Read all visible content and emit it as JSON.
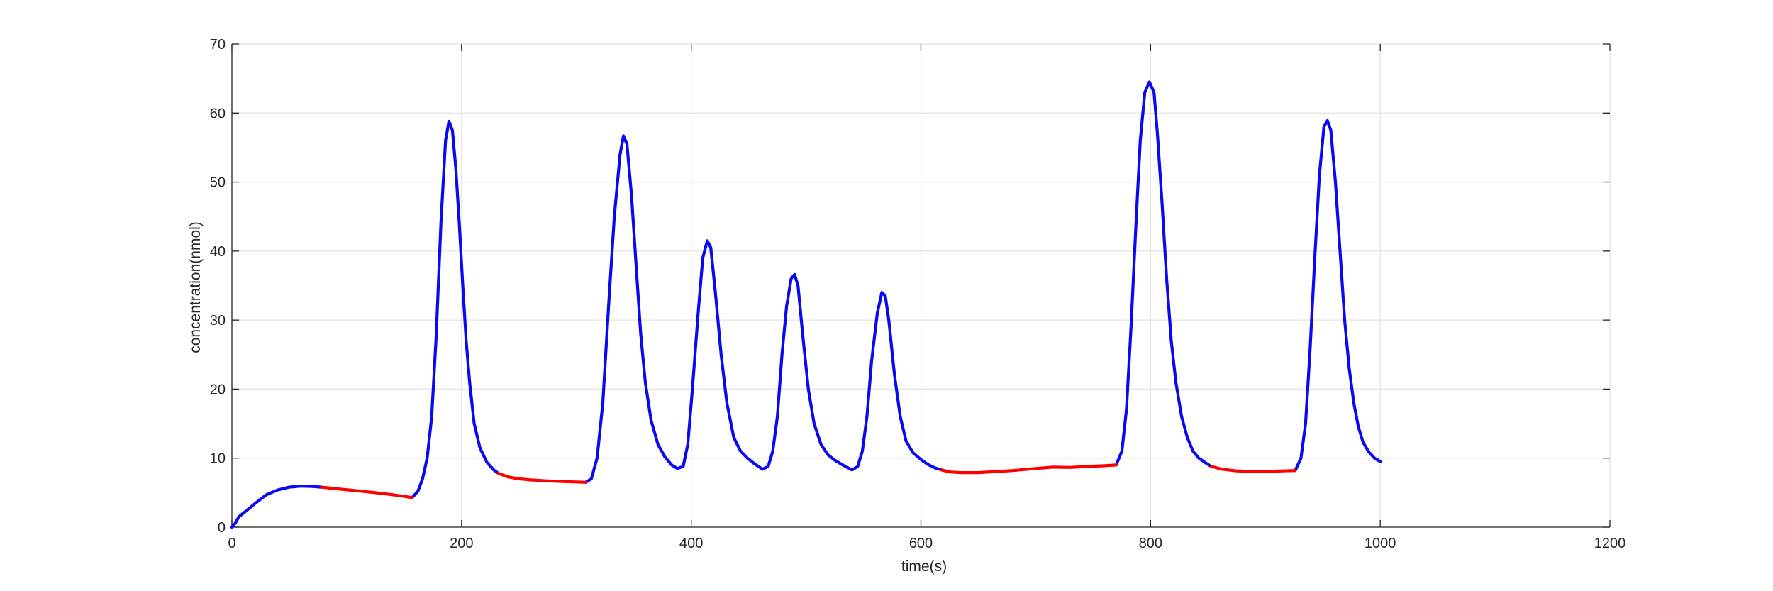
{
  "chart_data": {
    "type": "line",
    "xlabel": "time(s)",
    "ylabel": "concentration(nmol)",
    "xlim": [
      0,
      1200
    ],
    "ylim": [
      0,
      70
    ],
    "xticks": [
      0,
      200,
      400,
      600,
      800,
      1000,
      1200
    ],
    "yticks": [
      0,
      10,
      20,
      30,
      40,
      50,
      60,
      70
    ],
    "grid": true,
    "colors": {
      "active": "#0a0af0",
      "quiescent": "#ff0000"
    },
    "series": [
      {
        "color": "#0a0af0",
        "segments": [
          [
            [
              0,
              0
            ],
            [
              3,
              0.6
            ],
            [
              6,
              1.5
            ],
            [
              12,
              2.3
            ],
            [
              20,
              3.4
            ],
            [
              30,
              4.7
            ],
            [
              40,
              5.4
            ],
            [
              50,
              5.8
            ],
            [
              60,
              5.95
            ],
            [
              70,
              5.9
            ],
            [
              78,
              5.8
            ]
          ],
          [
            [
              157,
              4.3
            ],
            [
              162,
              5.2
            ],
            [
              166,
              7
            ],
            [
              170,
              10
            ],
            [
              174,
              16
            ],
            [
              178,
              28
            ],
            [
              182,
              44
            ],
            [
              186,
              56
            ],
            [
              189,
              58.8
            ],
            [
              192,
              57.5
            ],
            [
              195,
              52
            ],
            [
              198,
              44
            ],
            [
              201,
              35
            ],
            [
              204,
              27
            ],
            [
              207,
              21
            ],
            [
              211,
              15
            ],
            [
              216,
              11.5
            ],
            [
              222,
              9.4
            ],
            [
              228,
              8.3
            ],
            [
              232,
              7.8
            ]
          ],
          [
            [
              308,
              6.5
            ],
            [
              313,
              7
            ],
            [
              318,
              10
            ],
            [
              323,
              18
            ],
            [
              328,
              32
            ],
            [
              333,
              45
            ],
            [
              338,
              54
            ],
            [
              341,
              56.7
            ],
            [
              344,
              55.5
            ],
            [
              348,
              48
            ],
            [
              352,
              38
            ],
            [
              356,
              28
            ],
            [
              360,
              21
            ],
            [
              365,
              15.5
            ],
            [
              371,
              12
            ],
            [
              377,
              10.2
            ],
            [
              383,
              9
            ],
            [
              388,
              8.5
            ],
            [
              393,
              8.8
            ],
            [
              397,
              12
            ],
            [
              401,
              20
            ],
            [
              406,
              31
            ],
            [
              410,
              39
            ],
            [
              414,
              41.5
            ],
            [
              417,
              40.5
            ],
            [
              421,
              34
            ],
            [
              426,
              25
            ],
            [
              431,
              18
            ],
            [
              437,
              13
            ],
            [
              443,
              11
            ],
            [
              449,
              10
            ],
            [
              455,
              9.2
            ],
            [
              462,
              8.4
            ],
            [
              467,
              8.8
            ],
            [
              471,
              11
            ],
            [
              475,
              16
            ],
            [
              479,
              25
            ],
            [
              483,
              32
            ],
            [
              487,
              36
            ],
            [
              490,
              36.6
            ],
            [
              493,
              35
            ],
            [
              497,
              28
            ],
            [
              502,
              20
            ],
            [
              507,
              15
            ],
            [
              513,
              12
            ],
            [
              519,
              10.5
            ],
            [
              525,
              9.7
            ],
            [
              532,
              9
            ],
            [
              540,
              8.3
            ],
            [
              545,
              8.8
            ],
            [
              549,
              11
            ],
            [
              553,
              16
            ],
            [
              557,
              24
            ],
            [
              562,
              31
            ],
            [
              566,
              34
            ],
            [
              569,
              33.5
            ],
            [
              572,
              30
            ],
            [
              577,
              22
            ],
            [
              582,
              16
            ],
            [
              587,
              12.5
            ],
            [
              593,
              10.8
            ],
            [
              600,
              9.8
            ],
            [
              606,
              9.1
            ],
            [
              612,
              8.6
            ],
            [
              618,
              8.3
            ]
          ],
          [
            [
              770,
              9
            ],
            [
              775,
              11
            ],
            [
              779,
              17
            ],
            [
              783,
              29
            ],
            [
              787,
              43
            ],
            [
              791,
              56
            ],
            [
              795,
              63
            ],
            [
              799,
              64.5
            ],
            [
              803,
              63
            ],
            [
              806,
              57
            ],
            [
              810,
              47
            ],
            [
              814,
              36
            ],
            [
              818,
              27
            ],
            [
              822,
              21
            ],
            [
              827,
              16
            ],
            [
              832,
              13
            ],
            [
              837,
              11
            ],
            [
              842,
              10
            ],
            [
              848,
              9.3
            ],
            [
              853,
              8.8
            ]
          ],
          [
            [
              926,
              8.2
            ],
            [
              931,
              10
            ],
            [
              935,
              15
            ],
            [
              939,
              26
            ],
            [
              943,
              39
            ],
            [
              947,
              51
            ],
            [
              951,
              58
            ],
            [
              954,
              58.9
            ],
            [
              957,
              57.5
            ],
            [
              961,
              50
            ],
            [
              965,
              40
            ],
            [
              969,
              30
            ],
            [
              973,
              23
            ],
            [
              977,
              18
            ],
            [
              981,
              14.5
            ],
            [
              985,
              12.3
            ],
            [
              990,
              10.9
            ],
            [
              995,
              10
            ],
            [
              1000,
              9.5
            ]
          ]
        ]
      },
      {
        "color": "#ff0000",
        "segments": [
          [
            [
              78,
              5.8
            ],
            [
              95,
              5.5
            ],
            [
              110,
              5.25
            ],
            [
              125,
              5
            ],
            [
              140,
              4.7
            ],
            [
              157,
              4.3
            ]
          ],
          [
            [
              232,
              7.8
            ],
            [
              240,
              7.3
            ],
            [
              250,
              7
            ],
            [
              260,
              6.85
            ],
            [
              275,
              6.7
            ],
            [
              290,
              6.6
            ],
            [
              300,
              6.55
            ],
            [
              308,
              6.5
            ]
          ],
          [
            [
              618,
              8.3
            ],
            [
              625,
              8
            ],
            [
              635,
              7.9
            ],
            [
              650,
              7.9
            ],
            [
              665,
              8.05
            ],
            [
              680,
              8.2
            ],
            [
              700,
              8.5
            ],
            [
              715,
              8.7
            ],
            [
              730,
              8.65
            ],
            [
              745,
              8.8
            ],
            [
              760,
              8.9
            ],
            [
              770,
              9
            ]
          ],
          [
            [
              853,
              8.8
            ],
            [
              862,
              8.4
            ],
            [
              875,
              8.15
            ],
            [
              890,
              8.05
            ],
            [
              905,
              8.1
            ],
            [
              915,
              8.15
            ],
            [
              926,
              8.2
            ]
          ]
        ]
      }
    ]
  }
}
